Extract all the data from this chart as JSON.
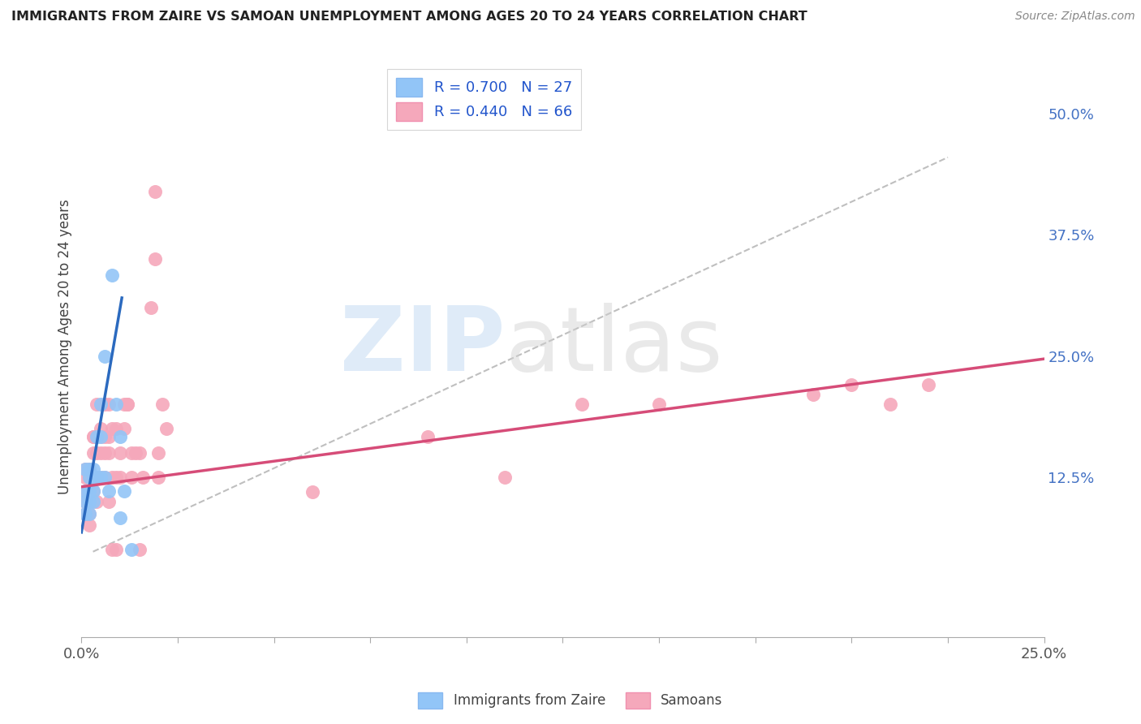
{
  "title": "IMMIGRANTS FROM ZAIRE VS SAMOAN UNEMPLOYMENT AMONG AGES 20 TO 24 YEARS CORRELATION CHART",
  "source": "Source: ZipAtlas.com",
  "ylabel": "Unemployment Among Ages 20 to 24 years",
  "xlim": [
    0.0,
    0.25
  ],
  "ylim": [
    -0.04,
    0.56
  ],
  "xtick_positions": [
    0.0,
    0.025,
    0.05,
    0.075,
    0.1,
    0.125,
    0.15,
    0.175,
    0.2,
    0.225,
    0.25
  ],
  "xticklabels_show": {
    "0.0": "0.0%",
    "0.25": "25.0%"
  },
  "ytick_right_positions": [
    0.0,
    0.125,
    0.25,
    0.375,
    0.5
  ],
  "yticklabels_right": [
    "",
    "12.5%",
    "25.0%",
    "37.5%",
    "50.0%"
  ],
  "zaire_color": "#92c5f7",
  "samoan_color": "#f5a8bb",
  "zaire_line_color": "#2b6abf",
  "samoan_line_color": "#d64c78",
  "diagonal_color": "#b8b8b8",
  "zaire_points": [
    [
      0.001,
      0.087
    ],
    [
      0.001,
      0.111
    ],
    [
      0.001,
      0.133
    ],
    [
      0.001,
      0.1
    ],
    [
      0.002,
      0.111
    ],
    [
      0.002,
      0.125
    ],
    [
      0.002,
      0.133
    ],
    [
      0.002,
      0.1
    ],
    [
      0.002,
      0.087
    ],
    [
      0.003,
      0.125
    ],
    [
      0.003,
      0.111
    ],
    [
      0.003,
      0.133
    ],
    [
      0.003,
      0.1
    ],
    [
      0.004,
      0.167
    ],
    [
      0.004,
      0.125
    ],
    [
      0.005,
      0.125
    ],
    [
      0.005,
      0.2
    ],
    [
      0.005,
      0.167
    ],
    [
      0.006,
      0.25
    ],
    [
      0.006,
      0.125
    ],
    [
      0.007,
      0.111
    ],
    [
      0.008,
      0.333
    ],
    [
      0.009,
      0.2
    ],
    [
      0.01,
      0.167
    ],
    [
      0.01,
      0.083
    ],
    [
      0.011,
      0.111
    ],
    [
      0.013,
      0.05
    ]
  ],
  "samoan_points": [
    [
      0.001,
      0.1
    ],
    [
      0.001,
      0.111
    ],
    [
      0.001,
      0.125
    ],
    [
      0.001,
      0.087
    ],
    [
      0.001,
      0.133
    ],
    [
      0.002,
      0.111
    ],
    [
      0.002,
      0.125
    ],
    [
      0.002,
      0.133
    ],
    [
      0.002,
      0.1
    ],
    [
      0.002,
      0.087
    ],
    [
      0.002,
      0.075
    ],
    [
      0.003,
      0.125
    ],
    [
      0.003,
      0.111
    ],
    [
      0.003,
      0.15
    ],
    [
      0.003,
      0.167
    ],
    [
      0.003,
      0.167
    ],
    [
      0.004,
      0.2
    ],
    [
      0.004,
      0.15
    ],
    [
      0.004,
      0.125
    ],
    [
      0.004,
      0.1
    ],
    [
      0.005,
      0.175
    ],
    [
      0.005,
      0.15
    ],
    [
      0.005,
      0.125
    ],
    [
      0.005,
      0.167
    ],
    [
      0.006,
      0.15
    ],
    [
      0.006,
      0.125
    ],
    [
      0.006,
      0.2
    ],
    [
      0.006,
      0.167
    ],
    [
      0.007,
      0.2
    ],
    [
      0.007,
      0.167
    ],
    [
      0.007,
      0.15
    ],
    [
      0.007,
      0.1
    ],
    [
      0.008,
      0.175
    ],
    [
      0.008,
      0.125
    ],
    [
      0.008,
      0.05
    ],
    [
      0.009,
      0.175
    ],
    [
      0.009,
      0.125
    ],
    [
      0.009,
      0.05
    ],
    [
      0.01,
      0.15
    ],
    [
      0.01,
      0.125
    ],
    [
      0.011,
      0.2
    ],
    [
      0.011,
      0.175
    ],
    [
      0.012,
      0.2
    ],
    [
      0.012,
      0.2
    ],
    [
      0.013,
      0.125
    ],
    [
      0.013,
      0.15
    ],
    [
      0.014,
      0.15
    ],
    [
      0.015,
      0.15
    ],
    [
      0.015,
      0.05
    ],
    [
      0.016,
      0.125
    ],
    [
      0.018,
      0.3
    ],
    [
      0.019,
      0.35
    ],
    [
      0.019,
      0.42
    ],
    [
      0.02,
      0.15
    ],
    [
      0.02,
      0.125
    ],
    [
      0.021,
      0.2
    ],
    [
      0.022,
      0.175
    ],
    [
      0.06,
      0.11
    ],
    [
      0.09,
      0.167
    ],
    [
      0.11,
      0.125
    ],
    [
      0.13,
      0.2
    ],
    [
      0.15,
      0.2
    ],
    [
      0.19,
      0.21
    ],
    [
      0.2,
      0.22
    ],
    [
      0.21,
      0.2
    ],
    [
      0.22,
      0.22
    ]
  ],
  "zaire_line_x": [
    0.0,
    0.0105
  ],
  "zaire_line_y": [
    0.068,
    0.31
  ],
  "samoan_line_x": [
    0.0,
    0.25
  ],
  "samoan_line_y": [
    0.115,
    0.247
  ],
  "diag_line_x": [
    0.003,
    0.225
  ],
  "diag_line_y": [
    0.048,
    0.455
  ]
}
